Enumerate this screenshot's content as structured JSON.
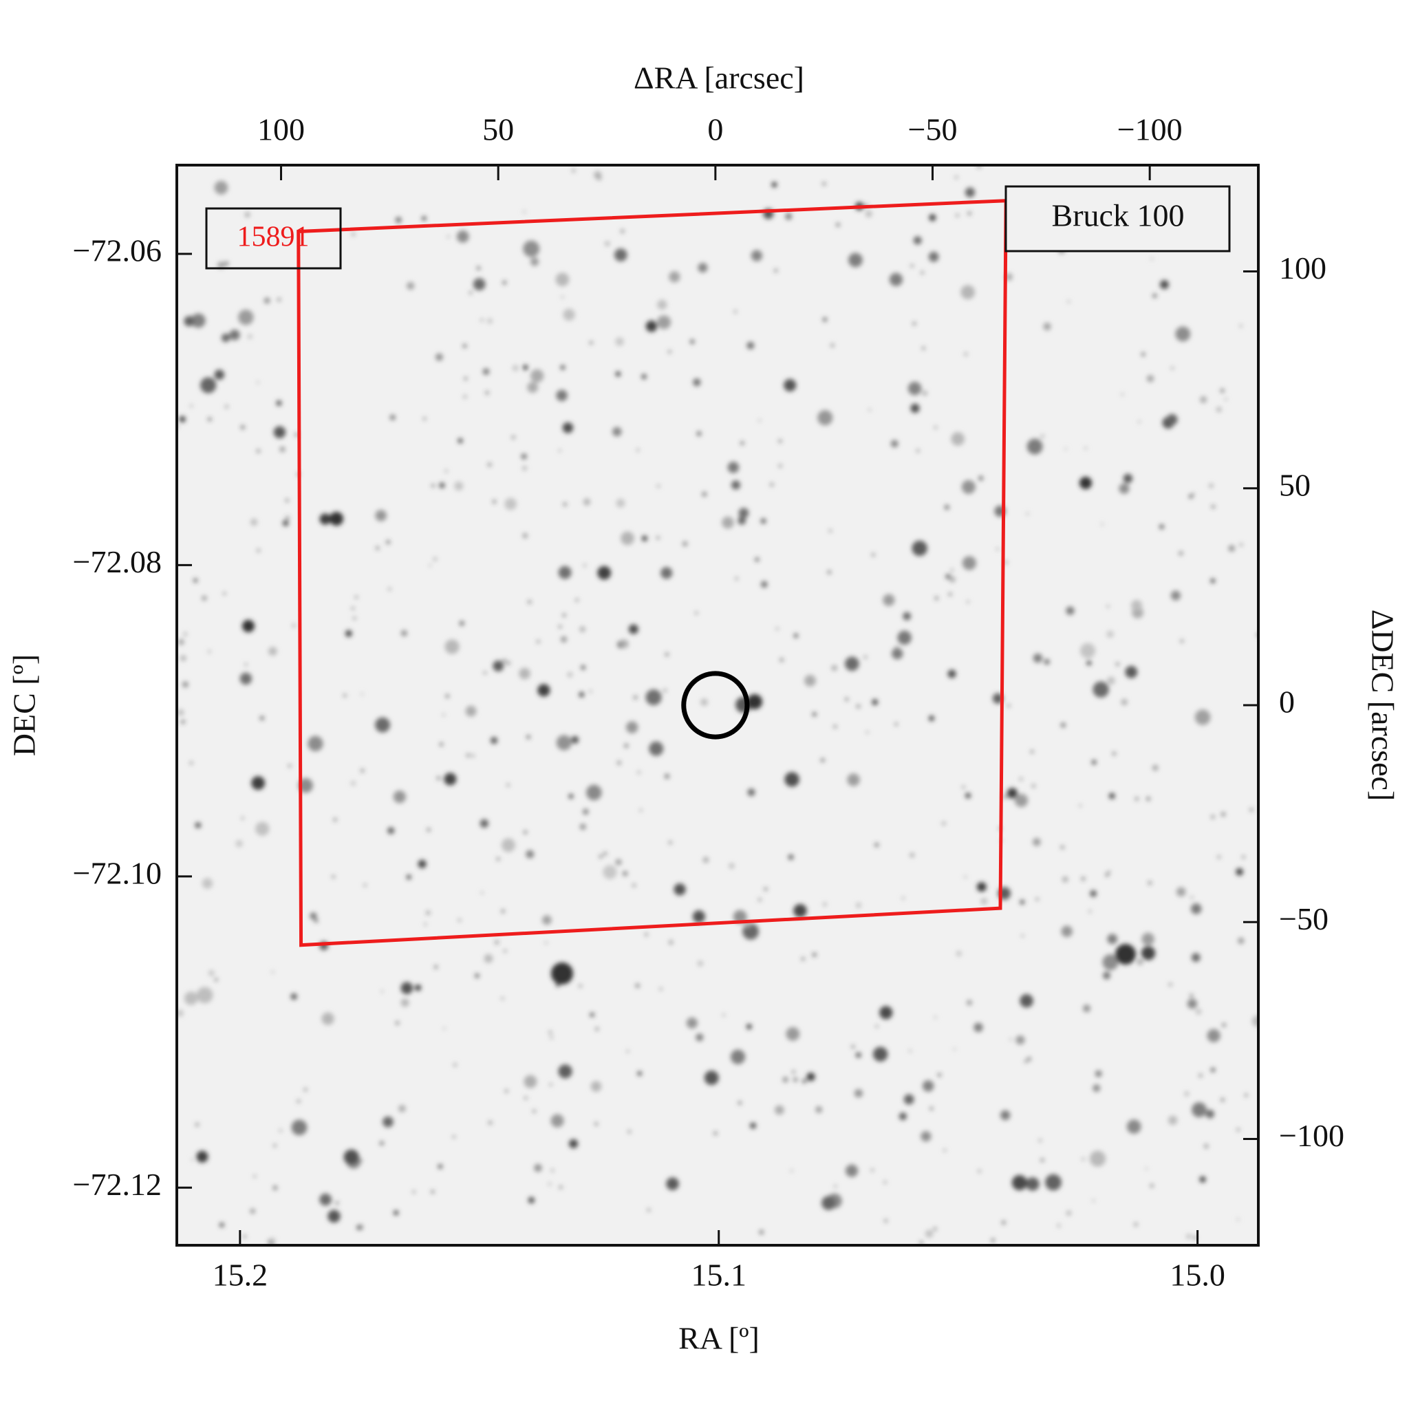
{
  "chart_data": {
    "type": "image",
    "xlabel": "RA [º]",
    "ylabel": "DEC [º]",
    "x2label": "ΔRA [arcsec]",
    "y2label": "ΔDEC [arcsec]",
    "xlim": [
      15.2132,
      14.9873
    ],
    "xticks": [
      15.2,
      15.1,
      {
        "value": 15.0,
        "label": "15.0"
      }
    ],
    "ylim": [
      -72.1237,
      -72.0543
    ],
    "yticks": [
      {
        "value": -72.06,
        "label": "−72.06"
      },
      {
        "value": -72.08,
        "label": "−72.08"
      },
      {
        "value": -72.1,
        "label": "−72.10"
      },
      {
        "value": -72.12,
        "label": "−72.12"
      }
    ],
    "x2lim": [
      124,
      -125
    ],
    "x2ticks": [
      100,
      50,
      0,
      {
        "value": -50,
        "label": "−50"
      },
      {
        "value": -100,
        "label": "−100"
      }
    ],
    "y2lim": [
      -124.5,
      124.5
    ],
    "y2ticks": [
      100,
      50,
      0,
      {
        "value": -50,
        "label": "−50"
      },
      {
        "value": -100,
        "label": "−100"
      }
    ],
    "footprint": {
      "label": "15891",
      "color": "#ee1c1c",
      "x": [
        96.0,
        -66.9,
        -65.6,
        95.4
      ],
      "y": [
        109.2,
        116.3,
        -46.8,
        -55.3
      ]
    },
    "target": {
      "x": 0,
      "y": 0,
      "r": 7.3,
      "color": "#000000"
    },
    "annotation": "Bruck 100"
  }
}
